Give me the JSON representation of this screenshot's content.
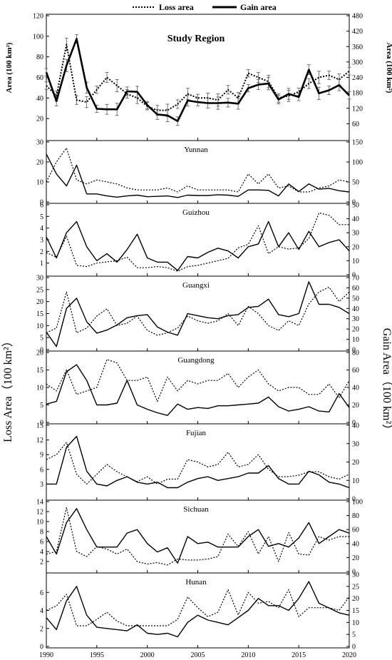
{
  "legend": [
    {
      "label": "Loss area",
      "style": "dotted"
    },
    {
      "label": "Gain area",
      "style": "solid"
    }
  ],
  "axis_titles": {
    "top_left": "Area (100 km²)",
    "top_right": "Area (100 km²)",
    "left": "Loss Area（100 km²）",
    "right": "Gain Area（100 km²）"
  },
  "chart_data": [
    {
      "type": "line",
      "title": "Study Region",
      "x": [
        1990,
        1991,
        1992,
        1993,
        1994,
        1995,
        1996,
        1997,
        1998,
        1999,
        2000,
        2001,
        2002,
        2003,
        2004,
        2005,
        2006,
        2007,
        2008,
        2009,
        2010,
        2011,
        2012,
        2013,
        2014,
        2015,
        2016,
        2017,
        2018,
        2019,
        2020
      ],
      "yleft": {
        "min": 0,
        "max": 120,
        "ticks": [
          20,
          40,
          60,
          80,
          100,
          120
        ]
      },
      "yright": {
        "min": 0,
        "max": 480,
        "ticks": [
          60,
          120,
          180,
          240,
          300,
          360,
          420,
          480
        ]
      },
      "series": [
        {
          "name": "Loss area",
          "axis": "left",
          "style": "dotted",
          "error_bars": true,
          "values": [
            52,
            42,
            92,
            38,
            36,
            48,
            60,
            52,
            44,
            40,
            32,
            28,
            28,
            34,
            44,
            40,
            40,
            38,
            48,
            40,
            64,
            60,
            56,
            40,
            42,
            46,
            54,
            60,
            62,
            58,
            66
          ]
        },
        {
          "name": "Gain area",
          "axis": "right",
          "style": "solid",
          "error_bars": true,
          "values": [
            260,
            148,
            286,
            390,
            200,
            118,
            116,
            116,
            186,
            184,
            132,
            96,
            92,
            70,
            150,
            144,
            140,
            140,
            142,
            138,
            198,
            212,
            216,
            154,
            176,
            164,
            270,
            178,
            190,
            210,
            170
          ]
        }
      ]
    },
    {
      "type": "line",
      "title": "Yunnan",
      "x": [
        1990,
        1991,
        1992,
        1993,
        1994,
        1995,
        1996,
        1997,
        1998,
        1999,
        2000,
        2001,
        2002,
        2003,
        2004,
        2005,
        2006,
        2007,
        2008,
        2009,
        2010,
        2011,
        2012,
        2013,
        2014,
        2015,
        2016,
        2017,
        2018,
        2019,
        2020
      ],
      "yleft": {
        "min": 0,
        "max": 30,
        "ticks": [
          0,
          10,
          20,
          30
        ]
      },
      "yright": {
        "min": 0,
        "max": 150,
        "ticks": [
          0,
          50,
          100,
          150
        ]
      },
      "series": [
        {
          "name": "Loss area",
          "axis": "left",
          "style": "dotted",
          "values": [
            10,
            20,
            27,
            11,
            9,
            11,
            10,
            9,
            7,
            6,
            6,
            6,
            7,
            5,
            8,
            6,
            6,
            6,
            6,
            5,
            14,
            9,
            14,
            7,
            8,
            5,
            5,
            7,
            8,
            11,
            10
          ]
        },
        {
          "name": "Gain area",
          "axis": "right",
          "style": "solid",
          "values": [
            120,
            70,
            40,
            92,
            20,
            20,
            15,
            12,
            15,
            17,
            13,
            14,
            15,
            11,
            17,
            16,
            16,
            18,
            17,
            14,
            30,
            30,
            29,
            15,
            45,
            26,
            45,
            32,
            34,
            28,
            25
          ]
        }
      ]
    },
    {
      "type": "line",
      "title": "Guizhou",
      "x": [
        1990,
        1991,
        1992,
        1993,
        1994,
        1995,
        1996,
        1997,
        1998,
        1999,
        2000,
        2001,
        2002,
        2003,
        2004,
        2005,
        2006,
        2007,
        2008,
        2009,
        2010,
        2011,
        2012,
        2013,
        2014,
        2015,
        2016,
        2017,
        2018,
        2019,
        2020
      ],
      "yleft": {
        "min": 0,
        "max": 6,
        "ticks": [
          1,
          2,
          3,
          4,
          5,
          6
        ]
      },
      "yright": {
        "min": 0,
        "max": 50,
        "ticks": [
          0,
          10,
          20,
          30,
          40,
          50
        ]
      },
      "series": [
        {
          "name": "Loss area",
          "axis": "left",
          "style": "dotted",
          "values": [
            1.9,
            1.5,
            3.3,
            0.8,
            0.7,
            1.0,
            1.1,
            1.2,
            1.5,
            0.6,
            0.6,
            0.7,
            0.6,
            0.3,
            0.7,
            0.8,
            1.0,
            1.2,
            1.4,
            2.3,
            2.6,
            4.2,
            1.8,
            2.4,
            2.2,
            2.3,
            3.1,
            5.3,
            5.1,
            4.3,
            4.3
          ]
        },
        {
          "name": "Gain area",
          "axis": "right",
          "style": "solid",
          "values": [
            27,
            12,
            30,
            38,
            20,
            10,
            15,
            9,
            18,
            29,
            12,
            9,
            9,
            3,
            13,
            12,
            16,
            19,
            17,
            12,
            20,
            22,
            38,
            20,
            30,
            18,
            31,
            20,
            23,
            25,
            17
          ]
        }
      ]
    },
    {
      "type": "line",
      "title": "Guangxi",
      "x": [
        1990,
        1991,
        1992,
        1993,
        1994,
        1995,
        1996,
        1997,
        1998,
        1999,
        2000,
        2001,
        2002,
        2003,
        2004,
        2005,
        2006,
        2007,
        2008,
        2009,
        2010,
        2011,
        2012,
        2013,
        2014,
        2015,
        2016,
        2017,
        2018,
        2019,
        2020
      ],
      "yleft": {
        "min": 0,
        "max": 30,
        "ticks": [
          0,
          5,
          10,
          15,
          20,
          25,
          30
        ]
      },
      "yright": {
        "min": 0,
        "max": 70,
        "ticks": [
          0,
          10,
          20,
          30,
          40,
          50,
          60,
          70
        ]
      },
      "series": [
        {
          "name": "Loss area",
          "axis": "left",
          "style": "dotted",
          "values": [
            7,
            9,
            24,
            7,
            9,
            14,
            17,
            10,
            11,
            14,
            8,
            6,
            7,
            9,
            14,
            12,
            11,
            12,
            15,
            10,
            18,
            15,
            10,
            8,
            12,
            10,
            19,
            24,
            26,
            20,
            24
          ]
        },
        {
          "name": "Gain area",
          "axis": "right",
          "style": "solid",
          "values": [
            17,
            3,
            40,
            50,
            27,
            16,
            19,
            24,
            31,
            33,
            34,
            22,
            17,
            14,
            35,
            33,
            31,
            30,
            33,
            34,
            41,
            42,
            49,
            34,
            32,
            35,
            66,
            44,
            44,
            41,
            35
          ]
        }
      ]
    },
    {
      "type": "line",
      "title": "Guangdong",
      "x": [
        1990,
        1991,
        1992,
        1993,
        1994,
        1995,
        1996,
        1997,
        1998,
        1999,
        2000,
        2001,
        2002,
        2003,
        2004,
        2005,
        2006,
        2007,
        2008,
        2009,
        2010,
        2011,
        2012,
        2013,
        2014,
        2015,
        2016,
        2017,
        2018,
        2019,
        2020
      ],
      "yleft": {
        "min": 0,
        "max": 20,
        "ticks": [
          0,
          5,
          10,
          15,
          20
        ]
      },
      "yright": {
        "min": 0,
        "max": 80,
        "ticks": [
          0,
          20,
          40,
          60,
          80
        ]
      },
      "series": [
        {
          "name": "Loss area",
          "axis": "left",
          "style": "dotted",
          "values": [
            11,
            9,
            15,
            8,
            9,
            10,
            18,
            17,
            12,
            12,
            13,
            6,
            13,
            9,
            12,
            11,
            12,
            12,
            14,
            10,
            13,
            15,
            11,
            9,
            10,
            10,
            8,
            8,
            11,
            7,
            12
          ]
        },
        {
          "name": "Gain area",
          "axis": "right",
          "style": "solid",
          "values": [
            21,
            24,
            58,
            66,
            48,
            20,
            20,
            22,
            48,
            20,
            15,
            11,
            8,
            21,
            15,
            17,
            16,
            19,
            19,
            20,
            21,
            22,
            29,
            18,
            13,
            15,
            18,
            13,
            12,
            33,
            17
          ]
        }
      ]
    },
    {
      "type": "line",
      "title": "Fujian",
      "x": [
        1990,
        1991,
        1992,
        1993,
        1994,
        1995,
        1996,
        1997,
        1998,
        1999,
        2000,
        2001,
        2002,
        2003,
        2004,
        2005,
        2006,
        2007,
        2008,
        2009,
        2010,
        2011,
        2012,
        2013,
        2014,
        2015,
        2016,
        2017,
        2018,
        2019,
        2020
      ],
      "yleft": {
        "min": 0,
        "max": 15,
        "ticks": [
          3,
          6,
          9,
          12,
          15
        ]
      },
      "yright": {
        "min": 0,
        "max": 40,
        "ticks": [
          0,
          10,
          20,
          30,
          40
        ]
      },
      "series": [
        {
          "name": "Loss area",
          "axis": "left",
          "style": "dotted",
          "values": [
            8,
            9,
            11.5,
            5,
            3,
            5,
            7,
            5.5,
            4.5,
            3.5,
            4.5,
            3,
            4,
            4,
            8,
            7.5,
            6.5,
            7,
            9.5,
            6.5,
            7,
            9,
            6,
            4.5,
            4.5,
            4.8,
            5.5,
            5.5,
            4.5,
            4,
            5
          ]
        },
        {
          "name": "Gain area",
          "axis": "right",
          "style": "solid",
          "values": [
            8,
            8,
            28,
            34,
            15,
            8,
            7,
            10,
            12,
            9,
            8,
            9,
            6,
            6,
            9,
            11,
            12,
            10,
            11,
            12,
            14,
            14,
            18,
            11,
            8,
            8,
            15,
            13,
            9,
            8,
            6
          ]
        }
      ]
    },
    {
      "type": "line",
      "title": "Sichuan",
      "x": [
        1990,
        1991,
        1992,
        1993,
        1994,
        1995,
        1996,
        1997,
        1998,
        1999,
        2000,
        2001,
        2002,
        2003,
        2004,
        2005,
        2006,
        2007,
        2008,
        2009,
        2010,
        2011,
        2012,
        2013,
        2014,
        2015,
        2016,
        2017,
        2018,
        2019,
        2020
      ],
      "yleft": {
        "min": 0,
        "max": 14,
        "ticks": [
          2,
          4,
          6,
          8,
          10,
          12,
          14
        ]
      },
      "yright": {
        "min": 0,
        "max": 100,
        "ticks": [
          0,
          20,
          40,
          60,
          80,
          100
        ]
      },
      "series": [
        {
          "name": "Loss area",
          "axis": "left",
          "style": "dotted",
          "values": [
            3.5,
            4,
            12.8,
            4,
            3,
            5,
            4.5,
            3.5,
            4.5,
            2,
            1.5,
            1.8,
            1.3,
            2.5,
            2.3,
            2.3,
            2.5,
            3,
            7.5,
            5,
            8,
            3.5,
            7,
            2,
            7.8,
            3.5,
            3.3,
            7,
            6.3,
            7,
            7
          ]
        },
        {
          "name": "Gain area",
          "axis": "right",
          "style": "solid",
          "values": [
            50,
            25,
            70,
            90,
            60,
            35,
            35,
            35,
            55,
            60,
            40,
            28,
            34,
            12,
            50,
            40,
            42,
            35,
            35,
            35,
            50,
            60,
            36,
            40,
            35,
            48,
            70,
            40,
            50,
            60,
            55
          ]
        }
      ]
    },
    {
      "type": "line",
      "title": "Hunan",
      "x": [
        1990,
        1991,
        1992,
        1993,
        1994,
        1995,
        1996,
        1997,
        1998,
        1999,
        2000,
        2001,
        2002,
        2003,
        2004,
        2005,
        2006,
        2007,
        2008,
        2009,
        2010,
        2011,
        2012,
        2013,
        2014,
        2015,
        2016,
        2017,
        2018,
        2019,
        2020
      ],
      "yleft": {
        "min": 0,
        "max": 8,
        "ticks": [
          0,
          2,
          4,
          6
        ]
      },
      "yright": {
        "min": 0,
        "max": 30,
        "ticks": [
          0,
          5,
          10,
          15,
          20,
          25,
          30
        ]
      },
      "series": [
        {
          "name": "Loss area",
          "axis": "left",
          "style": "dotted",
          "values": [
            4,
            4.5,
            5.8,
            2.3,
            2.3,
            3,
            3.8,
            2.8,
            2.3,
            2.3,
            2.3,
            2.3,
            2.3,
            3,
            5.5,
            4.3,
            3.3,
            3.8,
            6.3,
            3.5,
            6,
            4.8,
            5,
            4.3,
            6.3,
            3.3,
            4.3,
            4.3,
            4.3,
            4,
            5.5
          ]
        },
        {
          "name": "Gain area",
          "axis": "right",
          "style": "solid",
          "values": [
            12,
            7,
            19,
            25,
            13,
            8,
            7.5,
            7,
            6.5,
            9,
            5.5,
            5,
            5.5,
            4,
            10,
            13,
            11,
            10,
            9,
            12,
            15,
            20,
            17,
            17,
            15,
            20,
            27,
            18,
            16,
            14,
            13
          ]
        }
      ]
    }
  ],
  "x_axis": {
    "min": 1990,
    "max": 2020,
    "labels": [
      1990,
      1995,
      2000,
      2005,
      2010,
      2015,
      2020
    ]
  }
}
